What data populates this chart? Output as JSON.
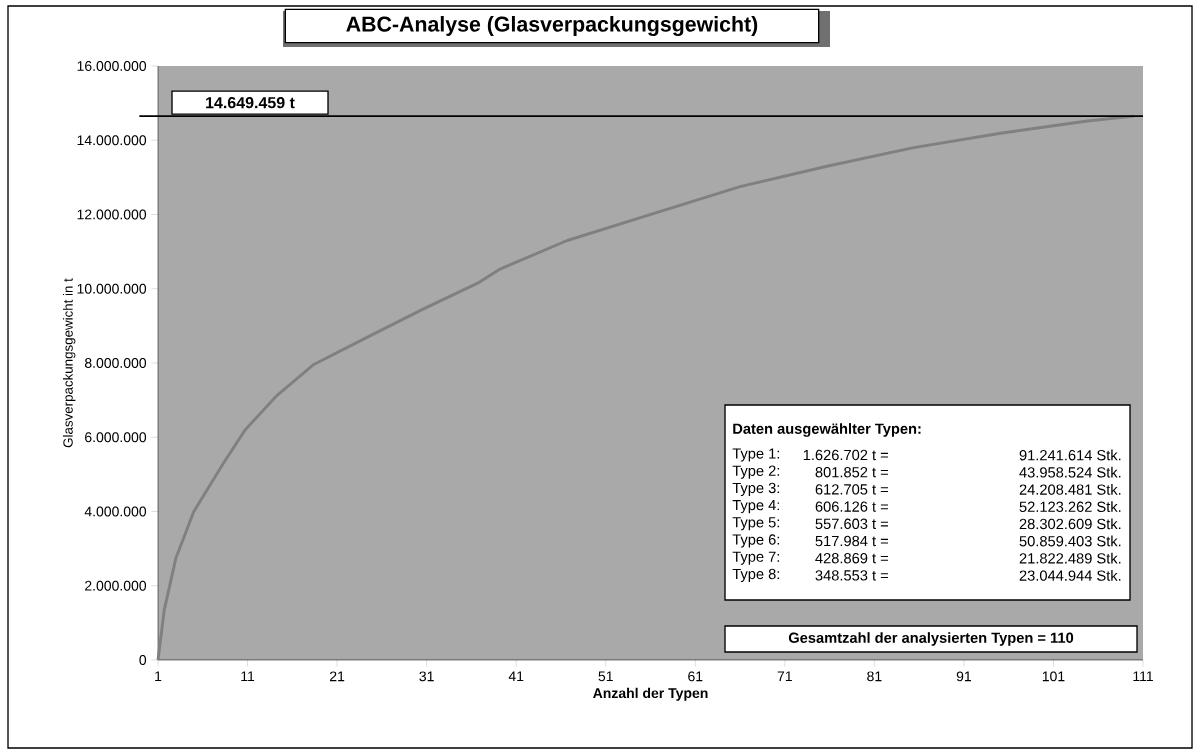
{
  "chart_data": {
    "type": "line",
    "title": "ABC-Analyse (Glasverpackungsgewicht)",
    "xlabel": "Anzahl der Typen",
    "ylabel": "Glasverpackungsgewicht in t",
    "x": [
      1,
      1.7,
      3,
      5,
      8.2,
      10.7,
      14.3,
      18.4,
      24.5,
      30.6,
      36.7,
      39.2,
      46.7,
      56.4,
      66,
      75.7,
      85.4,
      95.1,
      104.8,
      110
    ],
    "series": [
      {
        "color": "#808080",
        "values": [
          0,
          1350000,
          2750000,
          4000000,
          5260000,
          6190000,
          7130000,
          7960000,
          8710000,
          9450000,
          10150000,
          10530000,
          11300000,
          12030000,
          12750000,
          13300000,
          13800000,
          14190000,
          14520000,
          14650000
        ]
      }
    ],
    "xlim": [
      1,
      111
    ],
    "xticks": [
      1,
      11,
      21,
      31,
      41,
      51,
      61,
      71,
      81,
      91,
      101,
      111
    ],
    "ylim": [
      0,
      16000000
    ],
    "yticks": [
      0,
      {
        "value": 2000000,
        "label": "2.000.000"
      },
      {
        "value": 4000000,
        "label": "4.000.000"
      },
      {
        "value": 6000000,
        "label": "6.000.000"
      },
      {
        "value": 8000000,
        "label": "8.000.000"
      },
      {
        "value": 10000000,
        "label": "10.000.000"
      },
      {
        "value": 12000000,
        "label": "12.000.000"
      },
      {
        "value": 14000000,
        "label": "14.000.000"
      },
      {
        "value": 16000000,
        "label": "16.000.000"
      }
    ],
    "ref_lines": [
      {
        "axis": "y",
        "value": 14649459,
        "label": "14.649.459 t",
        "color": "#000000"
      }
    ],
    "annotations": [
      "Daten ausgewählter Typen:",
      "Type 1:",
      "1.626.702 t =",
      "91.241.614 Stk.",
      "Type 2:",
      "801.852 t =",
      "43.958.524 Stk.",
      "Type 3:",
      "612.705 t =",
      "24.208.481 Stk.",
      "Type 4:",
      "606.126 t =",
      "52.123.262 Stk.",
      "Type 5:",
      "557.603 t =",
      "28.302.609 Stk.",
      "Type 6:",
      "517.984 t =",
      "50.859.403 Stk.",
      "Type 7:",
      "428.869 t =",
      "21.822.489 Stk.",
      "Type 8:",
      "348.553 t =",
      "23.044.944 Stk.",
      "Gesamtzahl der analysierten Typen = 110"
    ],
    "marker": "none",
    "line_style": "solid"
  }
}
